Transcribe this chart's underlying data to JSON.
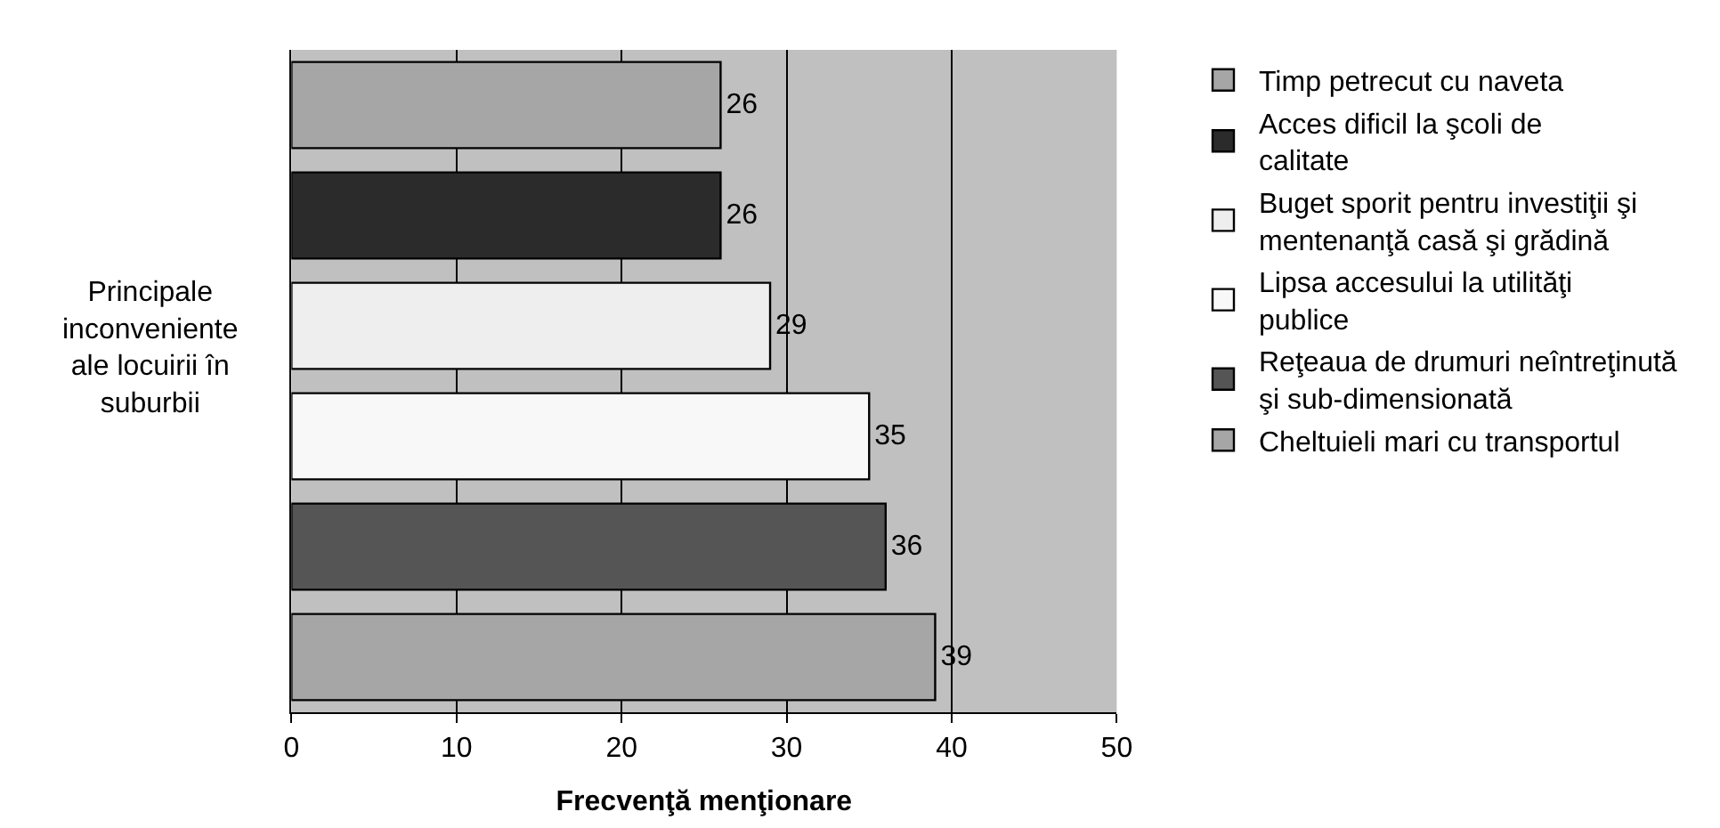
{
  "chart_data": {
    "type": "bar",
    "orientation": "horizontal",
    "categories": [
      null,
      null,
      null,
      null,
      null,
      null
    ],
    "ylabel": "Principale inconveniente ale locuirii în suburbii",
    "xlabel": "Frecvenţă menţionare",
    "series": [
      {
        "name": "Timp petrecut cu naveta",
        "color": "#a6a6a6",
        "values": [
          26,
          null,
          null,
          null,
          null,
          null
        ]
      },
      {
        "name": "Acces dificil la şcoli de calitate",
        "color": "#2b2b2b",
        "values": [
          null,
          26,
          null,
          null,
          null,
          null
        ]
      },
      {
        "name": "Buget sporit pentru investiţii şi mentenanţă casă şi grădină",
        "color": "#eeeeee",
        "values": [
          null,
          null,
          29,
          null,
          null,
          null
        ]
      },
      {
        "name": "Lipsa accesului la utilităţi publice",
        "color": "#f8f8f8",
        "values": [
          null,
          null,
          null,
          35,
          null,
          null
        ]
      },
      {
        "name": "Reţeaua de drumuri neîntreţinută şi sub-dimensionată",
        "color": "#555555",
        "values": [
          null,
          null,
          null,
          null,
          36,
          null
        ]
      },
      {
        "name": "Cheltuieli mari cu transportul",
        "color": "#a6a6a6",
        "values": [
          null,
          null,
          null,
          null,
          null,
          39
        ]
      }
    ],
    "xlim": [
      0,
      50
    ],
    "xticks": [
      0,
      10,
      20,
      30,
      40,
      50
    ],
    "grid": "x",
    "data_labels": true,
    "legend": "right"
  }
}
